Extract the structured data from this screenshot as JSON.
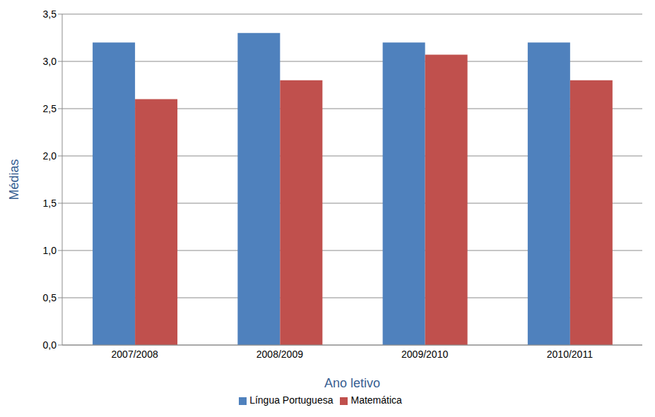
{
  "chart_data": {
    "type": "bar",
    "categories": [
      "2007/2008",
      "2008/2009",
      "2009/2010",
      "2010/2011"
    ],
    "series": [
      {
        "name": "Língua Portuguesa",
        "color": "#4f81bd",
        "values": [
          3.2,
          3.3,
          3.2,
          3.2
        ]
      },
      {
        "name": "Matemática",
        "color": "#c0504d",
        "values": [
          2.6,
          2.8,
          3.07,
          2.8
        ]
      }
    ],
    "x_label": "Ano letivo",
    "y_label": "Médias",
    "ylim": [
      0,
      3.5
    ],
    "yticks": [
      {
        "value": 0,
        "label": "0,0"
      },
      {
        "value": 0.5,
        "label": "0,5"
      },
      {
        "value": 1,
        "label": "1,0"
      },
      {
        "value": 1.5,
        "label": "1,5"
      },
      {
        "value": 2,
        "label": "2,0"
      },
      {
        "value": 2.5,
        "label": "2,5"
      },
      {
        "value": 3,
        "label": "3,0"
      },
      {
        "value": 3.5,
        "label": "3,5"
      }
    ],
    "grid": true,
    "legend": "bottom"
  }
}
